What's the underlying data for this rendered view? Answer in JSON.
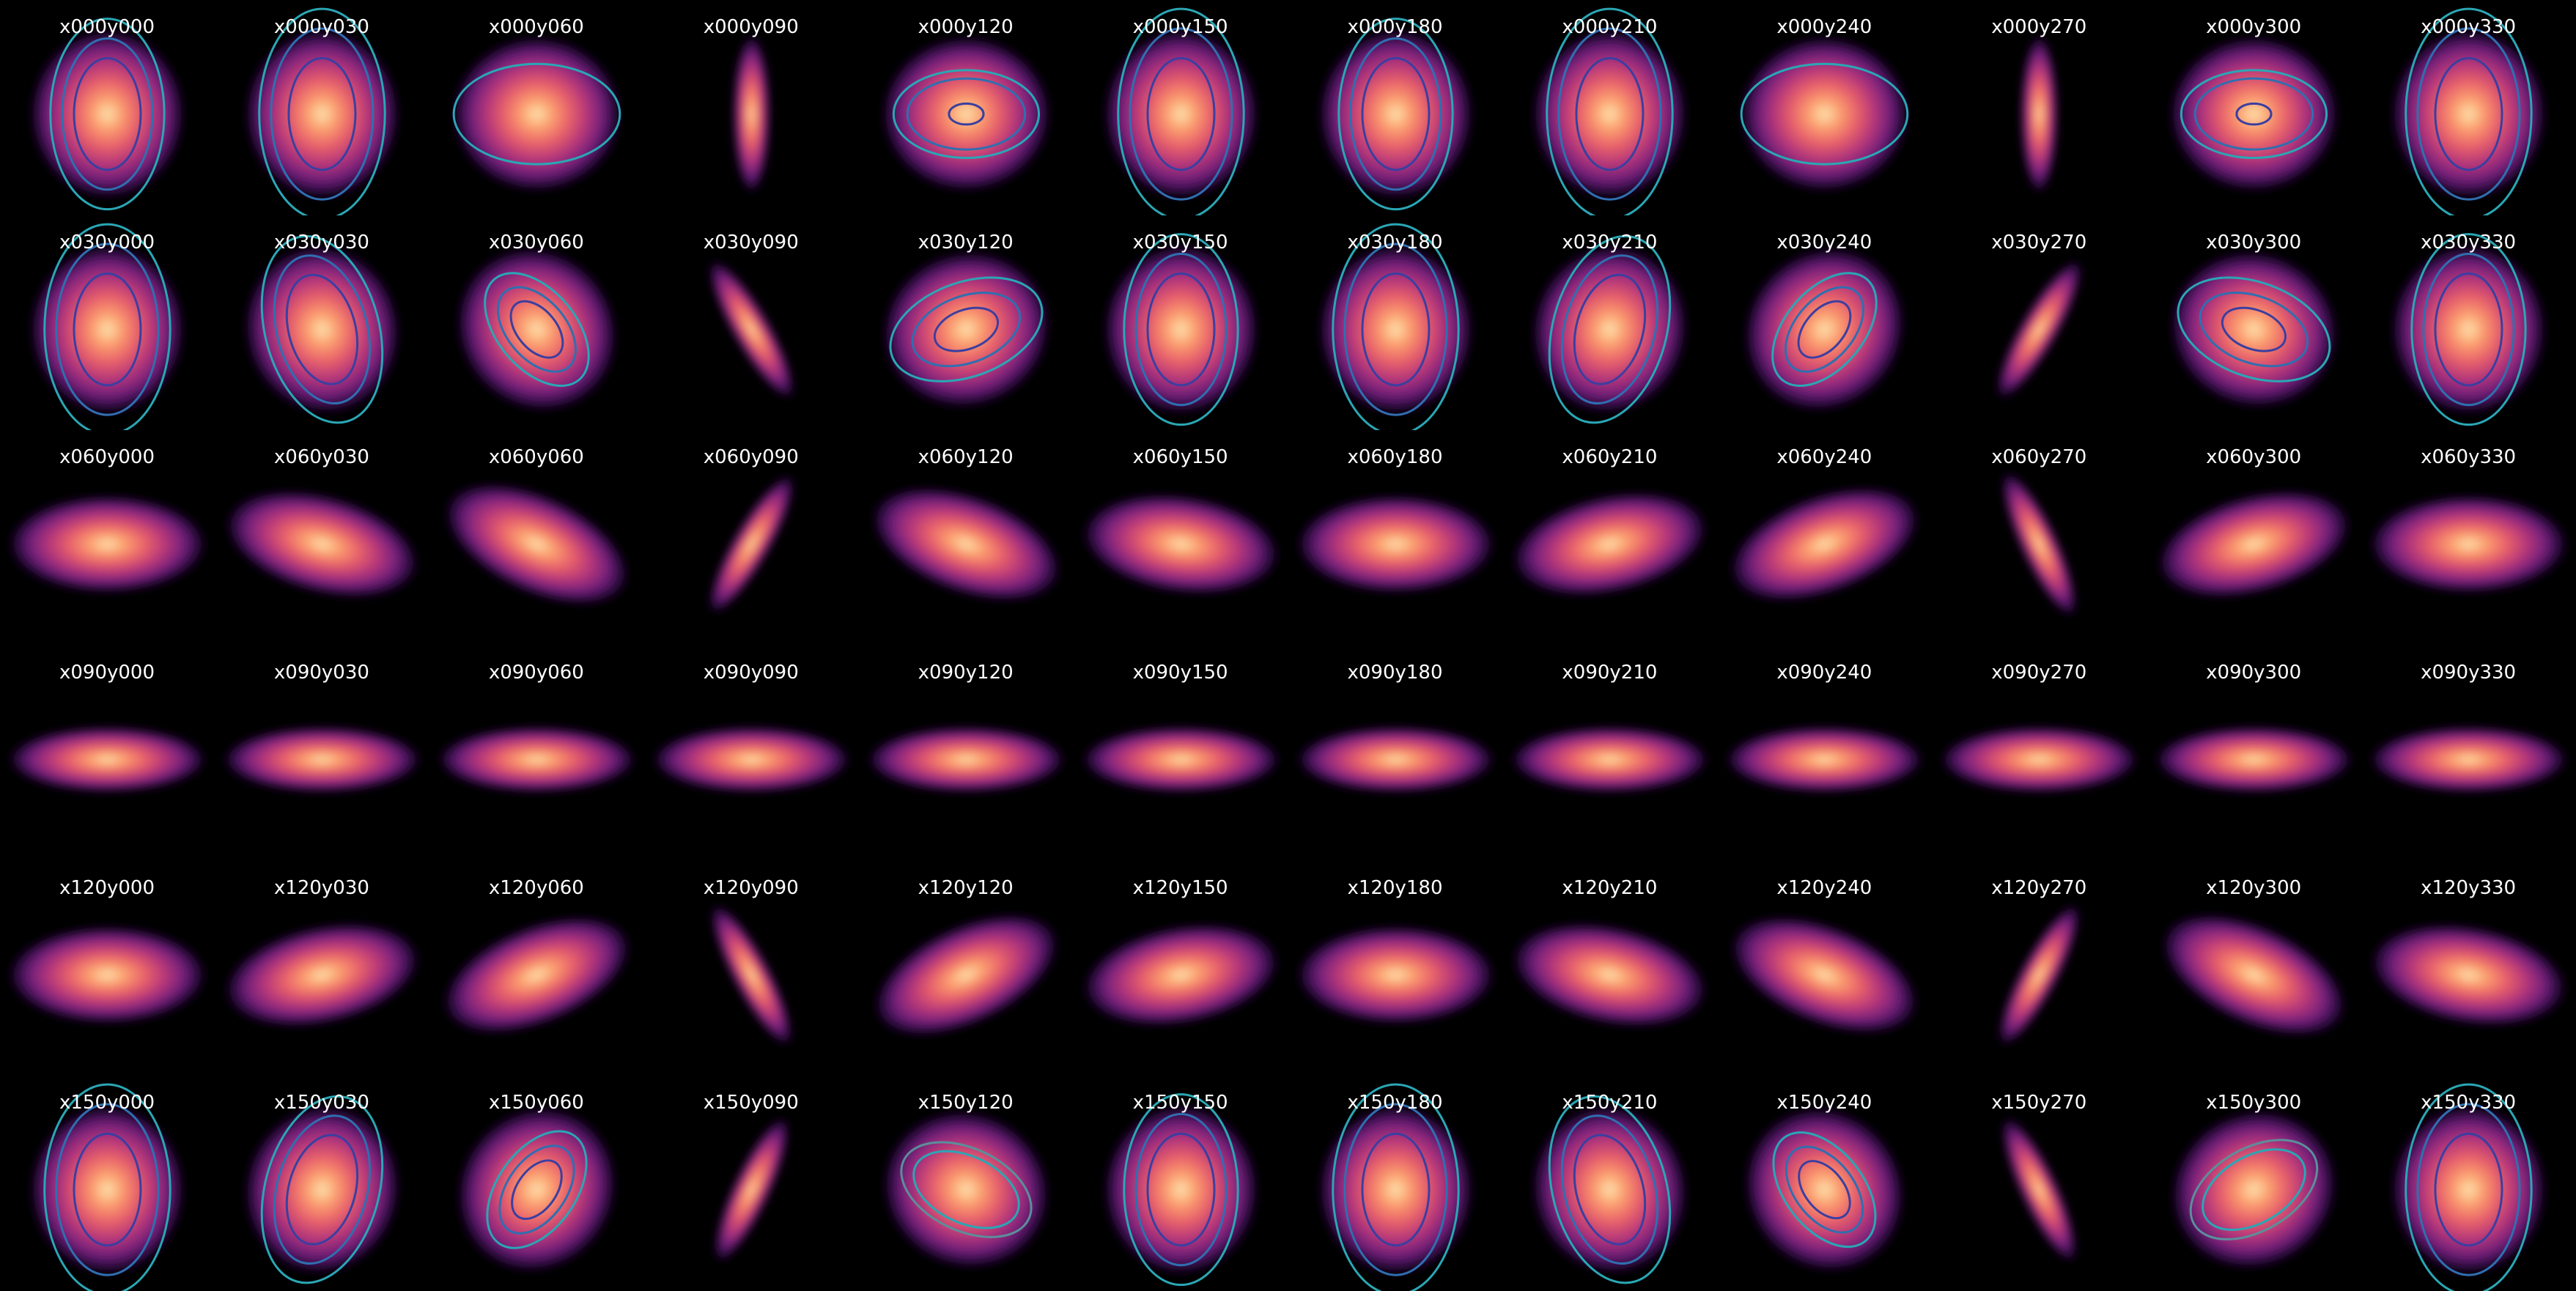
{
  "figure": {
    "background": "#000000",
    "title_color": "#ffffff",
    "colormap": "magma",
    "colormap_stops": [
      "#fde6b0",
      "#fc9f6f",
      "#e8616a",
      "#b5367a",
      "#7a2181",
      "#3e0f5e",
      "#000000"
    ],
    "contour_colors": [
      "#3b3fa0",
      "#2f6fb0",
      "#2aa7b5",
      "#5b8f9a"
    ]
  },
  "panels": [
    {
      "row": 0,
      "col": 0,
      "label": "x000y000",
      "tilt": 0,
      "rot": 0,
      "contours": [
        0.34,
        0.46,
        0.58
      ]
    },
    {
      "row": 0,
      "col": 1,
      "label": "x000y030",
      "tilt": 0,
      "rot": 0,
      "contours": [
        0.34,
        0.52,
        0.64
      ]
    },
    {
      "row": 0,
      "col": 2,
      "label": "x000y060",
      "tilt": 0,
      "rot": 90,
      "contours": [
        0.48
      ]
    },
    {
      "row": 0,
      "col": 3,
      "label": "x000y090",
      "tilt": 0,
      "rot": 0,
      "edge": true,
      "contours": []
    },
    {
      "row": 0,
      "col": 4,
      "label": "x000y120",
      "tilt": 0,
      "rot": 90,
      "contours": [
        0.1,
        0.34,
        0.42
      ]
    },
    {
      "row": 0,
      "col": 5,
      "label": "x000y150",
      "tilt": 0,
      "rot": 0,
      "contours": [
        0.34,
        0.52,
        0.64
      ]
    },
    {
      "row": 0,
      "col": 6,
      "label": "x000y180",
      "tilt": 0,
      "rot": 0,
      "contours": [
        0.34,
        0.46,
        0.58
      ]
    },
    {
      "row": 0,
      "col": 7,
      "label": "x000y210",
      "tilt": 0,
      "rot": 0,
      "contours": [
        0.34,
        0.52,
        0.64
      ]
    },
    {
      "row": 0,
      "col": 8,
      "label": "x000y240",
      "tilt": 0,
      "rot": 90,
      "contours": [
        0.48
      ]
    },
    {
      "row": 0,
      "col": 9,
      "label": "x000y270",
      "tilt": 0,
      "rot": 0,
      "edge": true,
      "contours": []
    },
    {
      "row": 0,
      "col": 10,
      "label": "x000y300",
      "tilt": 0,
      "rot": 90,
      "contours": [
        0.1,
        0.34,
        0.42
      ]
    },
    {
      "row": 0,
      "col": 11,
      "label": "x000y330",
      "tilt": 0,
      "rot": 0,
      "contours": [
        0.34,
        0.52,
        0.64
      ]
    },
    {
      "row": 1,
      "col": 0,
      "label": "x030y000",
      "tilt": 30,
      "rot": 0,
      "contours": [
        0.34,
        0.52,
        0.64
      ]
    },
    {
      "row": 1,
      "col": 1,
      "label": "x030y030",
      "tilt": 30,
      "rot": -15,
      "contours": [
        0.34,
        0.46,
        0.58
      ]
    },
    {
      "row": 1,
      "col": 2,
      "label": "x030y060",
      "tilt": 30,
      "rot": -40,
      "contours": [
        0.2,
        0.3,
        0.4
      ]
    },
    {
      "row": 1,
      "col": 3,
      "label": "x030y090",
      "tilt": 30,
      "rot": -30,
      "edge": true,
      "contours": []
    },
    {
      "row": 1,
      "col": 4,
      "label": "x030y120",
      "tilt": 30,
      "rot": 70,
      "contours": [
        0.2,
        0.34,
        0.48
      ]
    },
    {
      "row": 1,
      "col": 5,
      "label": "x030y150",
      "tilt": 30,
      "rot": 0,
      "contours": [
        0.34,
        0.46,
        0.58
      ]
    },
    {
      "row": 1,
      "col": 6,
      "label": "x030y180",
      "tilt": 30,
      "rot": 0,
      "contours": [
        0.34,
        0.52,
        0.64
      ]
    },
    {
      "row": 1,
      "col": 7,
      "label": "x030y210",
      "tilt": 30,
      "rot": 15,
      "contours": [
        0.34,
        0.46,
        0.58
      ]
    },
    {
      "row": 1,
      "col": 8,
      "label": "x030y240",
      "tilt": 30,
      "rot": 40,
      "contours": [
        0.2,
        0.3,
        0.4
      ]
    },
    {
      "row": 1,
      "col": 9,
      "label": "x030y270",
      "tilt": 30,
      "rot": 30,
      "edge": true,
      "contours": []
    },
    {
      "row": 1,
      "col": 10,
      "label": "x030y300",
      "tilt": 30,
      "rot": -70,
      "contours": [
        0.2,
        0.34,
        0.48
      ]
    },
    {
      "row": 1,
      "col": 11,
      "label": "x030y330",
      "tilt": 30,
      "rot": 0,
      "contours": [
        0.34,
        0.46,
        0.58
      ]
    },
    {
      "row": 2,
      "col": 0,
      "label": "x060y000",
      "tilt": 60,
      "rot": 0,
      "contours": []
    },
    {
      "row": 2,
      "col": 1,
      "label": "x060y030",
      "tilt": 60,
      "rot": 15,
      "contours": []
    },
    {
      "row": 2,
      "col": 2,
      "label": "x060y060",
      "tilt": 60,
      "rot": 25,
      "contours": []
    },
    {
      "row": 2,
      "col": 3,
      "label": "x060y090",
      "tilt": 60,
      "rot": 30,
      "edge": true,
      "contours": []
    },
    {
      "row": 2,
      "col": 4,
      "label": "x060y120",
      "tilt": 60,
      "rot": 20,
      "contours": []
    },
    {
      "row": 2,
      "col": 5,
      "label": "x060y150",
      "tilt": 60,
      "rot": 8,
      "contours": []
    },
    {
      "row": 2,
      "col": 6,
      "label": "x060y180",
      "tilt": 60,
      "rot": 0,
      "contours": []
    },
    {
      "row": 2,
      "col": 7,
      "label": "x060y210",
      "tilt": 60,
      "rot": -12,
      "contours": []
    },
    {
      "row": 2,
      "col": 8,
      "label": "x060y240",
      "tilt": 60,
      "rot": -20,
      "contours": []
    },
    {
      "row": 2,
      "col": 9,
      "label": "x060y270",
      "tilt": 60,
      "rot": -25,
      "edge": true,
      "contours": []
    },
    {
      "row": 2,
      "col": 10,
      "label": "x060y300",
      "tilt": 60,
      "rot": -15,
      "contours": []
    },
    {
      "row": 2,
      "col": 11,
      "label": "x060y330",
      "tilt": 60,
      "rot": 0,
      "contours": []
    },
    {
      "row": 3,
      "col": 0,
      "label": "x090y000",
      "tilt": 90,
      "rot": 0,
      "contours": []
    },
    {
      "row": 3,
      "col": 1,
      "label": "x090y030",
      "tilt": 90,
      "rot": 0,
      "contours": []
    },
    {
      "row": 3,
      "col": 2,
      "label": "x090y060",
      "tilt": 90,
      "rot": 0,
      "contours": []
    },
    {
      "row": 3,
      "col": 3,
      "label": "x090y090",
      "tilt": 90,
      "rot": 0,
      "contours": []
    },
    {
      "row": 3,
      "col": 4,
      "label": "x090y120",
      "tilt": 90,
      "rot": 0,
      "contours": []
    },
    {
      "row": 3,
      "col": 5,
      "label": "x090y150",
      "tilt": 90,
      "rot": 0,
      "contours": []
    },
    {
      "row": 3,
      "col": 6,
      "label": "x090y180",
      "tilt": 90,
      "rot": 0,
      "contours": []
    },
    {
      "row": 3,
      "col": 7,
      "label": "x090y210",
      "tilt": 90,
      "rot": 0,
      "contours": []
    },
    {
      "row": 3,
      "col": 8,
      "label": "x090y240",
      "tilt": 90,
      "rot": 0,
      "contours": []
    },
    {
      "row": 3,
      "col": 9,
      "label": "x090y270",
      "tilt": 90,
      "rot": 0,
      "contours": []
    },
    {
      "row": 3,
      "col": 10,
      "label": "x090y300",
      "tilt": 90,
      "rot": 0,
      "contours": []
    },
    {
      "row": 3,
      "col": 11,
      "label": "x090y330",
      "tilt": 90,
      "rot": 0,
      "contours": []
    },
    {
      "row": 4,
      "col": 0,
      "label": "x120y000",
      "tilt": 60,
      "rot": 0,
      "contours": []
    },
    {
      "row": 4,
      "col": 1,
      "label": "x120y030",
      "tilt": 60,
      "rot": -12,
      "contours": []
    },
    {
      "row": 4,
      "col": 2,
      "label": "x120y060",
      "tilt": 60,
      "rot": -22,
      "contours": []
    },
    {
      "row": 4,
      "col": 3,
      "label": "x120y090",
      "tilt": 60,
      "rot": -28,
      "edge": true,
      "contours": []
    },
    {
      "row": 4,
      "col": 4,
      "label": "x120y120",
      "tilt": 60,
      "rot": -25,
      "contours": []
    },
    {
      "row": 4,
      "col": 5,
      "label": "x120y150",
      "tilt": 60,
      "rot": -10,
      "contours": []
    },
    {
      "row": 4,
      "col": 6,
      "label": "x120y180",
      "tilt": 60,
      "rot": 0,
      "contours": []
    },
    {
      "row": 4,
      "col": 7,
      "label": "x120y210",
      "tilt": 60,
      "rot": 12,
      "contours": []
    },
    {
      "row": 4,
      "col": 8,
      "label": "x120y240",
      "tilt": 60,
      "rot": 22,
      "contours": []
    },
    {
      "row": 4,
      "col": 9,
      "label": "x120y270",
      "tilt": 60,
      "rot": 28,
      "edge": true,
      "contours": []
    },
    {
      "row": 4,
      "col": 10,
      "label": "x120y300",
      "tilt": 60,
      "rot": 25,
      "contours": []
    },
    {
      "row": 4,
      "col": 11,
      "label": "x120y330",
      "tilt": 60,
      "rot": 10,
      "contours": []
    },
    {
      "row": 5,
      "col": 0,
      "label": "x150y000",
      "tilt": 30,
      "rot": 0,
      "contours": [
        0.34,
        0.52,
        0.64
      ]
    },
    {
      "row": 5,
      "col": 1,
      "label": "x150y030",
      "tilt": 30,
      "rot": 15,
      "contours": [
        0.34,
        0.46,
        0.58
      ]
    },
    {
      "row": 5,
      "col": 2,
      "label": "x150y060",
      "tilt": 30,
      "rot": 35,
      "contours": [
        0.2,
        0.3,
        0.4
      ]
    },
    {
      "row": 5,
      "col": 3,
      "label": "x150y090",
      "tilt": 30,
      "rot": 25,
      "edge": true,
      "contours": []
    },
    {
      "row": 5,
      "col": 4,
      "label": "x150y120",
      "tilt": 30,
      "rot": -65,
      "contours": [
        0.34,
        0.42
      ]
    },
    {
      "row": 5,
      "col": 5,
      "label": "x150y150",
      "tilt": 30,
      "rot": 0,
      "contours": [
        0.34,
        0.46,
        0.58
      ]
    },
    {
      "row": 5,
      "col": 6,
      "label": "x150y180",
      "tilt": 30,
      "rot": 0,
      "contours": [
        0.34,
        0.52,
        0.64
      ]
    },
    {
      "row": 5,
      "col": 7,
      "label": "x150y210",
      "tilt": 30,
      "rot": -15,
      "contours": [
        0.34,
        0.46,
        0.58
      ]
    },
    {
      "row": 5,
      "col": 8,
      "label": "x150y240",
      "tilt": 30,
      "rot": -38,
      "contours": [
        0.2,
        0.3,
        0.4
      ]
    },
    {
      "row": 5,
      "col": 9,
      "label": "x150y270",
      "tilt": 30,
      "rot": -25,
      "edge": true,
      "contours": []
    },
    {
      "row": 5,
      "col": 10,
      "label": "x150y300",
      "tilt": 30,
      "rot": 60,
      "contours": [
        0.34,
        0.42
      ]
    },
    {
      "row": 5,
      "col": 11,
      "label": "x150y330",
      "tilt": 30,
      "rot": 0,
      "contours": [
        0.34,
        0.52,
        0.64
      ]
    }
  ]
}
